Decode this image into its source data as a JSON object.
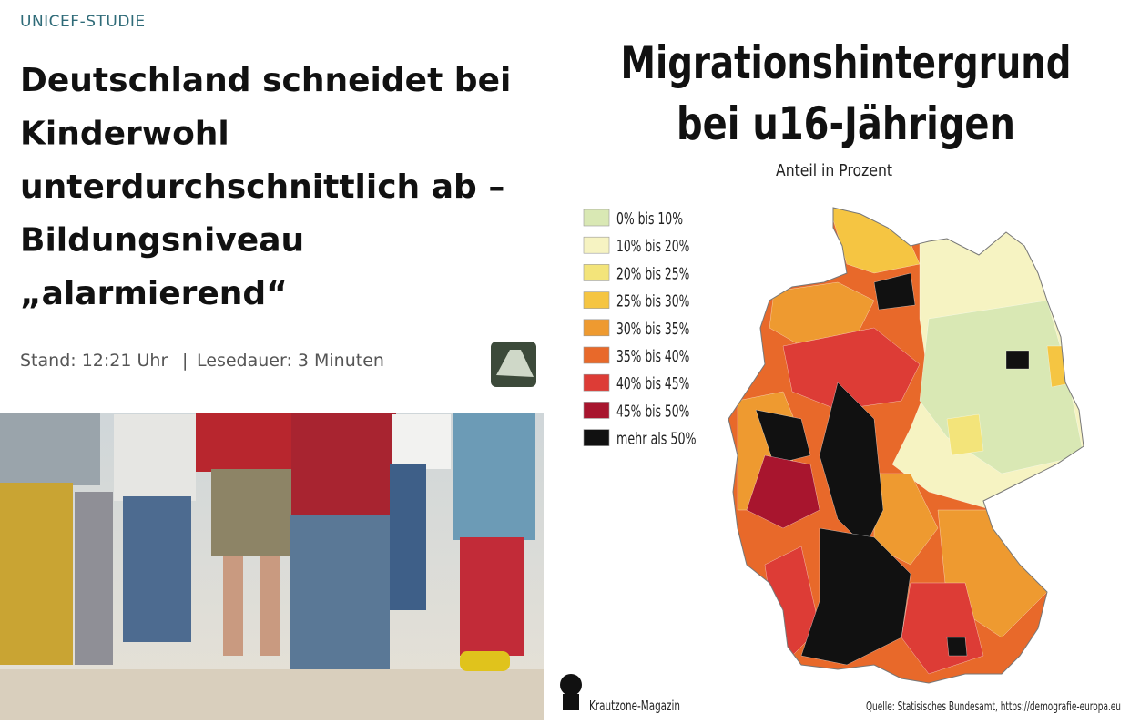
{
  "article": {
    "kicker": "UNICEF-STUDIE",
    "headline": [
      "Deutschland schneidet bei",
      "Kinderwohl",
      "unterdurchschnittlich ab –",
      "Bildungsniveau",
      "„alarmierend“"
    ],
    "meta": [
      "Stand: 12:21 Uhr",
      "|",
      "Lesedauer: 3 Minuten"
    ]
  },
  "map": {
    "title": [
      "Migrationshintergrund",
      "bei u16-Jährigen"
    ],
    "subtitle": "Anteil in Prozent",
    "legend": [
      {
        "label": "0% bis 10%",
        "color": "#d9e8b4"
      },
      {
        "label": "10% bis 20%",
        "color": "#f6f3c2"
      },
      {
        "label": "20% bis 25%",
        "color": "#f3e47a"
      },
      {
        "label": "25% bis 30%",
        "color": "#f5c542"
      },
      {
        "label": "30% bis 35%",
        "color": "#ee9a30"
      },
      {
        "label": "35% bis 40%",
        "color": "#e8692a"
      },
      {
        "label": "40% bis 45%",
        "color": "#dd3c36"
      },
      {
        "label": "45% bis 50%",
        "color": "#a8152e"
      },
      {
        "label": "mehr als 50%",
        "color": "#111111"
      }
    ],
    "credit": "Krautzone-Magazin",
    "source": "Quelle: Statisisches Bundesamt, https://demografie-europa.eu"
  }
}
